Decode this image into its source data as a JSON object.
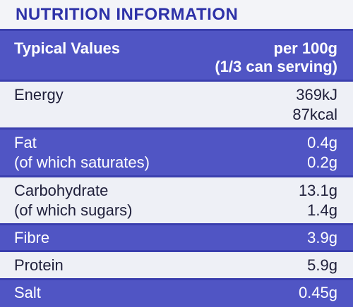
{
  "title": "NUTRITION INFORMATION",
  "header": {
    "label": "Typical Values",
    "per_line1": "per 100g",
    "per_line2": "(1/3 can serving)"
  },
  "rows": [
    {
      "label": "Energy",
      "value": "369kJ",
      "label2": "",
      "value2": "87kcal"
    },
    {
      "label": "Fat",
      "value": "0.4g",
      "label2": "(of which saturates)",
      "value2": "0.2g"
    },
    {
      "label": "Carbohydrate",
      "value": "13.1g",
      "label2": "(of which sugars)",
      "value2": "1.4g"
    },
    {
      "label": "Fibre",
      "value": "3.9g"
    },
    {
      "label": "Protein",
      "value": "5.9g"
    },
    {
      "label": "Salt",
      "value": "0.45g"
    }
  ],
  "colors": {
    "accent_blue": "#5055c4",
    "border_blue": "#3a3fae",
    "panel_white": "#eef0f6"
  }
}
